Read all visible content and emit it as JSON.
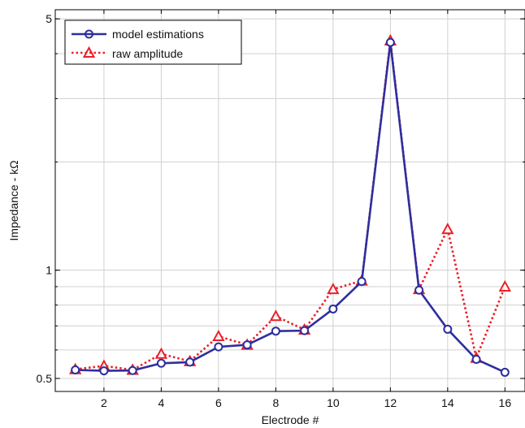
{
  "chart_data": {
    "type": "line",
    "xlabel": "Electrode #",
    "ylabel": "Impedance - kΩ",
    "xlim": [
      0.3,
      16.7
    ],
    "ylim": [
      0.46,
      5.3
    ],
    "yscale": "log",
    "xticks": [
      2,
      4,
      6,
      8,
      10,
      12,
      14,
      16
    ],
    "xtick_labels": [
      "2",
      "4",
      "6",
      "8",
      "10",
      "12",
      "14",
      "16"
    ],
    "yticks": [
      0.5,
      1,
      5
    ],
    "ytick_labels": [
      "0.5",
      "1",
      "5"
    ],
    "grid": true,
    "legend_position": "top-left",
    "x": [
      1,
      2,
      3,
      4,
      5,
      6,
      7,
      8,
      9,
      10,
      11,
      12,
      13,
      14,
      15,
      16
    ],
    "series": [
      {
        "name": "model estimations",
        "color": "#2e2e9e",
        "marker": "circle",
        "line_style": "solid",
        "values": [
          0.528,
          0.525,
          0.526,
          0.551,
          0.555,
          0.612,
          0.62,
          0.677,
          0.679,
          0.78,
          0.93,
          4.3,
          0.88,
          0.685,
          0.565,
          0.52
        ]
      },
      {
        "name": "raw amplitude",
        "color": "#e8202a",
        "marker": "triangle",
        "line_style": "dotted",
        "values": [
          0.53,
          0.542,
          0.528,
          0.585,
          0.558,
          0.655,
          0.62,
          0.745,
          0.683,
          0.885,
          0.935,
          4.35,
          0.885,
          1.3,
          0.57,
          0.9
        ]
      }
    ]
  }
}
